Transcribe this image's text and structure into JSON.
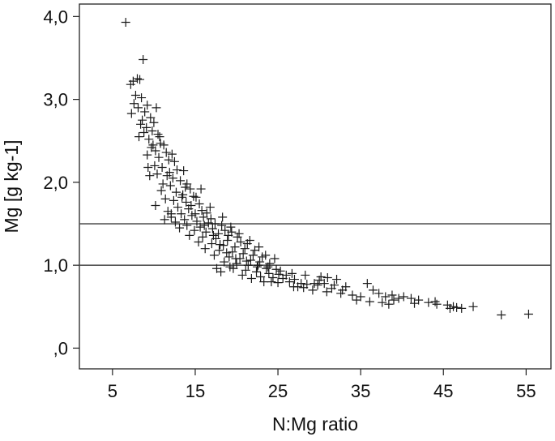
{
  "chart_data": {
    "type": "scatter",
    "title": "",
    "xlabel": "N:Mg ratio",
    "ylabel": "Mg [g kg-1]",
    "xlim": [
      1,
      58
    ],
    "ylim": [
      -0.25,
      4.15
    ],
    "x_ticks": [
      5,
      15,
      25,
      35,
      45,
      55
    ],
    "x_tick_labels": [
      "5",
      "15",
      "25",
      "35",
      "45",
      "55"
    ],
    "y_ticks": [
      0,
      1,
      2,
      3,
      4
    ],
    "y_tick_labels": [
      ",0",
      "1,0",
      "2,0",
      "3,0",
      "4,0"
    ],
    "grid": false,
    "marker": "+",
    "reference_lines_y": [
      1.0,
      1.5
    ],
    "series": [
      {
        "points": [
          [
            6.6,
            3.93
          ],
          [
            8.7,
            3.48
          ],
          [
            7.5,
            3.22
          ],
          [
            8.0,
            3.25
          ],
          [
            8.3,
            3.24
          ],
          [
            7.2,
            3.18
          ],
          [
            7.8,
            3.05
          ],
          [
            8.5,
            3.02
          ],
          [
            7.6,
            2.95
          ],
          [
            8.1,
            2.9
          ],
          [
            9.2,
            2.93
          ],
          [
            10.3,
            2.9
          ],
          [
            7.3,
            2.83
          ],
          [
            8.9,
            2.85
          ],
          [
            9.6,
            2.78
          ],
          [
            10.0,
            2.72
          ],
          [
            8.4,
            2.7
          ],
          [
            9.1,
            2.66
          ],
          [
            9.8,
            2.62
          ],
          [
            10.5,
            2.58
          ],
          [
            8.2,
            2.55
          ],
          [
            9.4,
            2.52
          ],
          [
            10.8,
            2.47
          ],
          [
            11.2,
            2.45
          ],
          [
            9.7,
            2.42
          ],
          [
            10.2,
            2.38
          ],
          [
            11.5,
            2.36
          ],
          [
            12.2,
            2.34
          ],
          [
            9.2,
            2.33
          ],
          [
            10.6,
            2.3
          ],
          [
            11.8,
            2.27
          ],
          [
            12.5,
            2.25
          ],
          [
            10.1,
            2.2
          ],
          [
            11.0,
            2.18
          ],
          [
            12.8,
            2.15
          ],
          [
            13.6,
            2.14
          ],
          [
            10.4,
            2.1
          ],
          [
            11.6,
            2.08
          ],
          [
            12.3,
            2.05
          ],
          [
            13.2,
            2.02
          ],
          [
            9.5,
            2.08
          ],
          [
            11.1,
            1.98
          ],
          [
            12.0,
            1.96
          ],
          [
            13.8,
            1.94
          ],
          [
            14.4,
            1.92
          ],
          [
            10.9,
            1.9
          ],
          [
            12.7,
            1.88
          ],
          [
            13.5,
            1.85
          ],
          [
            14.8,
            1.83
          ],
          [
            15.1,
            1.82
          ],
          [
            11.4,
            1.8
          ],
          [
            12.4,
            1.78
          ],
          [
            13.9,
            1.76
          ],
          [
            15.5,
            1.74
          ],
          [
            10.2,
            1.72
          ],
          [
            12.9,
            1.7
          ],
          [
            14.2,
            1.68
          ],
          [
            15.8,
            1.66
          ],
          [
            16.4,
            1.63
          ],
          [
            11.7,
            1.65
          ],
          [
            13.3,
            1.62
          ],
          [
            14.6,
            1.6
          ],
          [
            16.0,
            1.58
          ],
          [
            16.9,
            1.56
          ],
          [
            12.1,
            1.58
          ],
          [
            13.7,
            1.55
          ],
          [
            15.2,
            1.53
          ],
          [
            16.6,
            1.51
          ],
          [
            17.4,
            1.5
          ],
          [
            18.2,
            1.48
          ],
          [
            12.6,
            1.52
          ],
          [
            14.0,
            1.48
          ],
          [
            15.6,
            1.46
          ],
          [
            17.1,
            1.44
          ],
          [
            18.6,
            1.42
          ],
          [
            19.4,
            1.4
          ],
          [
            13.1,
            1.45
          ],
          [
            14.9,
            1.42
          ],
          [
            16.3,
            1.4
          ],
          [
            17.8,
            1.38
          ],
          [
            19.0,
            1.36
          ],
          [
            20.1,
            1.34
          ],
          [
            14.3,
            1.36
          ],
          [
            15.9,
            1.34
          ],
          [
            17.5,
            1.32
          ],
          [
            18.9,
            1.3
          ],
          [
            20.5,
            1.28
          ],
          [
            21.3,
            1.26
          ],
          [
            15.4,
            1.28
          ],
          [
            17.0,
            1.26
          ],
          [
            18.4,
            1.24
          ],
          [
            19.8,
            1.22
          ],
          [
            21.0,
            1.2
          ],
          [
            22.2,
            1.18
          ],
          [
            16.2,
            1.2
          ],
          [
            17.9,
            1.18
          ],
          [
            19.5,
            1.16
          ],
          [
            20.8,
            1.14
          ],
          [
            22.0,
            1.12
          ],
          [
            23.1,
            1.1
          ],
          [
            17.3,
            1.12
          ],
          [
            19.1,
            1.1
          ],
          [
            20.4,
            1.08
          ],
          [
            21.7,
            1.06
          ],
          [
            22.8,
            1.04
          ],
          [
            24.0,
            1.02
          ],
          [
            18.5,
            1.04
          ],
          [
            20.0,
            1.02
          ],
          [
            21.4,
            1.0
          ],
          [
            22.5,
            0.98
          ],
          [
            23.6,
            0.96
          ],
          [
            24.8,
            0.95
          ],
          [
            19.6,
            0.96
          ],
          [
            21.1,
            0.94
          ],
          [
            22.4,
            0.92
          ],
          [
            23.9,
            0.9
          ],
          [
            25.1,
            0.89
          ],
          [
            26.0,
            0.88
          ],
          [
            18.1,
            0.92
          ],
          [
            20.7,
            0.88
          ],
          [
            22.9,
            0.86
          ],
          [
            24.4,
            0.85
          ],
          [
            25.6,
            0.84
          ],
          [
            27.0,
            0.83
          ],
          [
            23.3,
            0.8
          ],
          [
            25.0,
            0.79
          ],
          [
            26.4,
            0.8
          ],
          [
            27.8,
            0.78
          ],
          [
            28.5,
            0.77
          ],
          [
            29.4,
            0.78
          ],
          [
            26.9,
            0.74
          ],
          [
            28.1,
            0.73
          ],
          [
            30.0,
            0.82
          ],
          [
            31.0,
            0.85
          ],
          [
            32.1,
            0.83
          ],
          [
            30.6,
            0.78
          ],
          [
            31.8,
            0.76
          ],
          [
            33.2,
            0.74
          ],
          [
            29.2,
            0.7
          ],
          [
            30.9,
            0.68
          ],
          [
            32.6,
            0.66
          ],
          [
            34.0,
            0.64
          ],
          [
            35.0,
            0.62
          ],
          [
            35.8,
            0.78
          ],
          [
            36.5,
            0.7
          ],
          [
            37.2,
            0.66
          ],
          [
            38.0,
            0.62
          ],
          [
            38.8,
            0.64
          ],
          [
            39.6,
            0.6
          ],
          [
            34.5,
            0.58
          ],
          [
            36.1,
            0.56
          ],
          [
            37.6,
            0.55
          ],
          [
            39.0,
            0.58
          ],
          [
            40.2,
            0.62
          ],
          [
            41.1,
            0.6
          ],
          [
            42.0,
            0.58
          ],
          [
            43.2,
            0.55
          ],
          [
            44.0,
            0.56
          ],
          [
            45.5,
            0.52
          ],
          [
            45.8,
            0.48
          ],
          [
            46.2,
            0.5
          ],
          [
            46.6,
            0.49
          ],
          [
            47.2,
            0.48
          ],
          [
            48.6,
            0.5
          ],
          [
            44.2,
            0.53
          ],
          [
            41.5,
            0.54
          ],
          [
            38.4,
            0.53
          ],
          [
            52.0,
            0.4
          ],
          [
            55.3,
            0.41
          ],
          [
            14.0,
            1.98
          ],
          [
            14.5,
            1.72
          ],
          [
            15.0,
            1.62
          ],
          [
            16.1,
            1.48
          ],
          [
            17.2,
            1.36
          ],
          [
            18.0,
            1.25
          ],
          [
            18.8,
            1.15
          ],
          [
            19.9,
            1.08
          ],
          [
            21.2,
            1.05
          ],
          [
            22.6,
            1.0
          ],
          [
            23.8,
            0.98
          ],
          [
            25.3,
            0.93
          ],
          [
            26.7,
            0.9
          ],
          [
            28.3,
            0.88
          ],
          [
            30.2,
            0.86
          ],
          [
            31.5,
            0.72
          ],
          [
            32.8,
            0.7
          ],
          [
            11.9,
            2.12
          ],
          [
            12.1,
            1.62
          ],
          [
            10.7,
            2.55
          ],
          [
            9.9,
            2.45
          ],
          [
            8.8,
            2.6
          ],
          [
            8.6,
            2.75
          ],
          [
            9.3,
            2.18
          ],
          [
            11.3,
            1.55
          ],
          [
            13.4,
            1.82
          ],
          [
            15.7,
            1.92
          ],
          [
            16.8,
            1.7
          ],
          [
            18.3,
            1.58
          ],
          [
            19.3,
            1.46
          ],
          [
            20.3,
            1.38
          ],
          [
            21.6,
            1.3
          ],
          [
            22.7,
            1.22
          ],
          [
            23.5,
            1.12
          ],
          [
            24.6,
            1.08
          ],
          [
            17.6,
            0.96
          ],
          [
            19.2,
            0.98
          ],
          [
            21.8,
            0.84
          ],
          [
            24.2,
            0.8
          ],
          [
            27.4,
            0.74
          ],
          [
            29.8,
            0.76
          ]
        ]
      }
    ]
  }
}
